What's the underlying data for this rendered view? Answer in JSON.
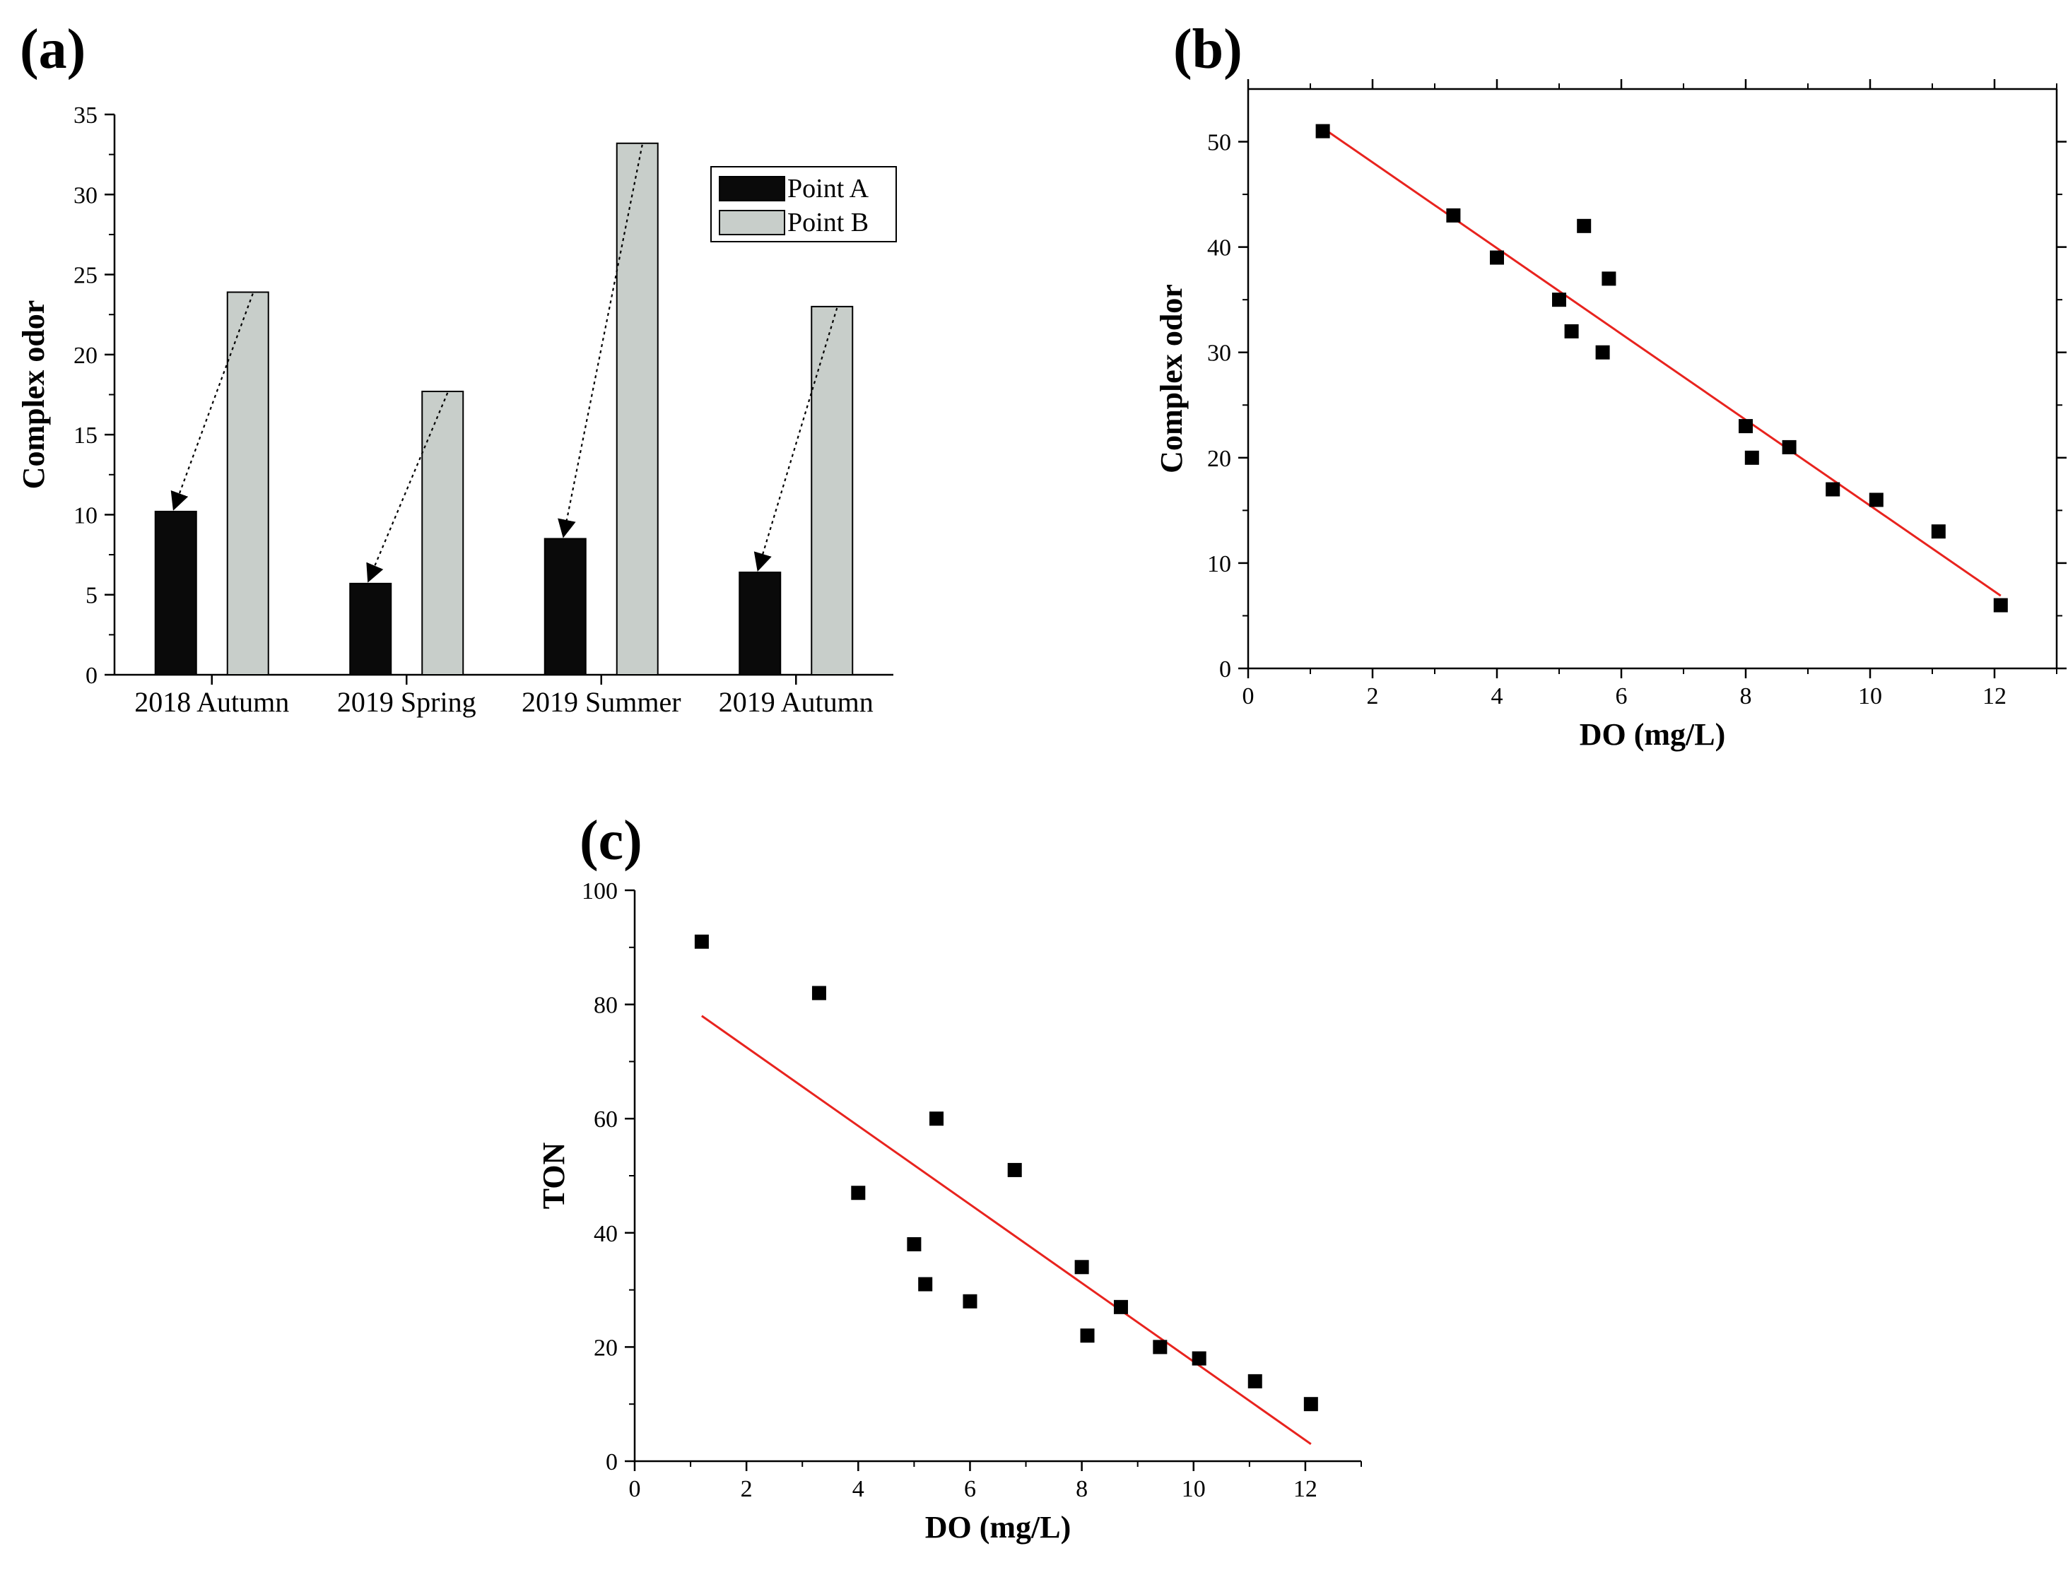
{
  "chart_data": [
    {
      "panel": "(a)",
      "type": "bar",
      "ylabel": "Complex odor",
      "xlabel": "",
      "ylim": [
        0,
        35
      ],
      "yticks": [
        0,
        5,
        10,
        15,
        20,
        25,
        30,
        35
      ],
      "categories": [
        "2018 Autumn",
        "2019 Spring",
        "2019 Summer",
        "2019 Autumn"
      ],
      "series": [
        {
          "name": "Point A",
          "values": [
            10.2,
            5.7,
            8.5,
            6.4
          ],
          "color": "#0a0a0a"
        },
        {
          "name": "Point B",
          "values": [
            23.9,
            17.7,
            33.2,
            23.0
          ],
          "color": "#c8ceca"
        }
      ],
      "legend": "top-right",
      "annotations": "dotted arrows from each Point B bar to the corresponding Point A bar"
    },
    {
      "panel": "(b)",
      "type": "scatter",
      "xlabel": "DO (mg/L)",
      "ylabel": "Complex odor",
      "xlim": [
        0,
        13
      ],
      "ylim": [
        0,
        55
      ],
      "xticks": [
        0,
        2,
        4,
        6,
        8,
        10,
        12
      ],
      "yticks": [
        0,
        10,
        20,
        30,
        40,
        50
      ],
      "points": [
        [
          1.2,
          51
        ],
        [
          3.3,
          43
        ],
        [
          4.0,
          39
        ],
        [
          5.0,
          35
        ],
        [
          5.2,
          32
        ],
        [
          5.4,
          42
        ],
        [
          5.7,
          30
        ],
        [
          5.8,
          37
        ],
        [
          8.0,
          23
        ],
        [
          8.1,
          20
        ],
        [
          8.7,
          21
        ],
        [
          9.4,
          17
        ],
        [
          10.1,
          16
        ],
        [
          11.1,
          13
        ],
        [
          12.1,
          6
        ]
      ],
      "fit_line": {
        "x": [
          1.2,
          12.1
        ],
        "y": [
          51.3,
          6.9
        ],
        "color": "#e8231e"
      }
    },
    {
      "panel": "(c)",
      "type": "scatter",
      "xlabel": "DO (mg/L)",
      "ylabel": "TON",
      "xlim": [
        0,
        13
      ],
      "ylim": [
        0,
        100
      ],
      "xticks": [
        0,
        2,
        4,
        6,
        8,
        10,
        12
      ],
      "yticks": [
        0,
        20,
        40,
        60,
        80,
        100
      ],
      "points": [
        [
          1.2,
          91
        ],
        [
          3.3,
          82
        ],
        [
          4.0,
          47
        ],
        [
          5.0,
          38
        ],
        [
          5.2,
          31
        ],
        [
          5.4,
          60
        ],
        [
          6.0,
          28
        ],
        [
          6.8,
          51
        ],
        [
          8.0,
          34
        ],
        [
          8.1,
          22
        ],
        [
          8.7,
          27
        ],
        [
          9.4,
          20
        ],
        [
          10.1,
          18
        ],
        [
          11.1,
          14
        ],
        [
          12.1,
          10
        ]
      ],
      "fit_line": {
        "x": [
          1.2,
          12.1
        ],
        "y": [
          78,
          3
        ],
        "color": "#e8231e"
      }
    }
  ]
}
